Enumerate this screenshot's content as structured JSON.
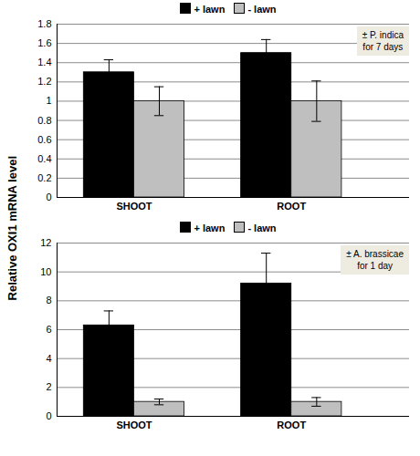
{
  "chart_data": [
    {
      "type": "bar",
      "ylabel": "Relative OXI1 mRNA level",
      "annotations": [
        "± P. indica",
        "for 7 days"
      ],
      "categories": [
        "SHOOT",
        "ROOT"
      ],
      "series": [
        {
          "name": "+ lawn",
          "color": "#000000",
          "values": [
            1.3,
            1.5
          ],
          "errors": [
            0.13,
            0.14
          ]
        },
        {
          "name": "- lawn",
          "color": "#bfbfbf",
          "values": [
            1.0,
            1.0
          ],
          "errors": [
            0.15,
            0.21
          ]
        }
      ],
      "ylim": [
        0,
        1.8
      ],
      "yticks": [
        0,
        0.2,
        0.4,
        0.6,
        0.8,
        1,
        1.2,
        1.4,
        1.6,
        1.8
      ],
      "grid": true,
      "legend": "top"
    },
    {
      "type": "bar",
      "annotations": [
        "± A. brassicae",
        "for 1 day"
      ],
      "categories": [
        "SHOOT",
        "ROOT"
      ],
      "series": [
        {
          "name": "+ lawn",
          "color": "#000000",
          "values": [
            6.3,
            9.2
          ],
          "errors": [
            1.0,
            2.1
          ]
        },
        {
          "name": "- lawn",
          "color": "#bfbfbf",
          "values": [
            1.0,
            1.0
          ],
          "errors": [
            0.2,
            0.3
          ]
        }
      ],
      "ylim": [
        0,
        12
      ],
      "yticks": [
        0,
        2,
        4,
        6,
        8,
        10,
        12
      ],
      "grid": true,
      "legend": "top"
    }
  ]
}
